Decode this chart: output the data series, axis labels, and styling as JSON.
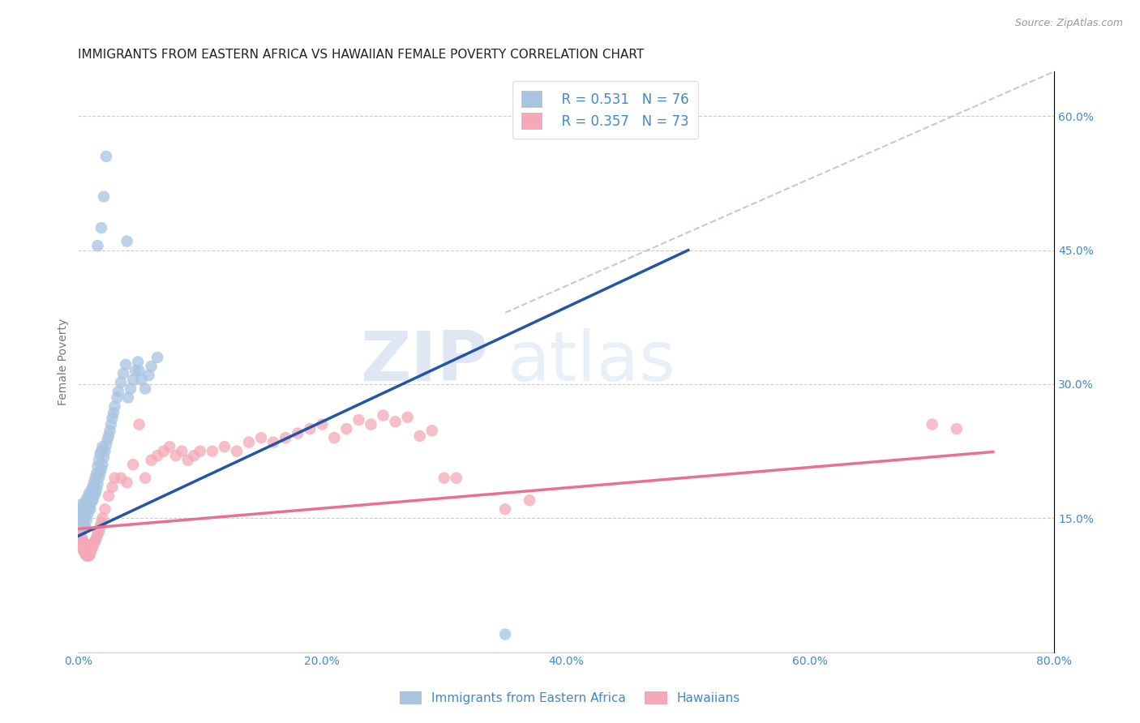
{
  "title": "IMMIGRANTS FROM EASTERN AFRICA VS HAWAIIAN FEMALE POVERTY CORRELATION CHART",
  "source_text": "Source: ZipAtlas.com",
  "ylabel": "Female Poverty",
  "xlim": [
    0.0,
    0.8
  ],
  "ylim": [
    0.0,
    0.65
  ],
  "xticks": [
    0.0,
    0.1,
    0.2,
    0.3,
    0.4,
    0.5,
    0.6,
    0.7,
    0.8
  ],
  "xticklabels": [
    "0.0%",
    "",
    "20.0%",
    "",
    "40.0%",
    "",
    "60.0%",
    "",
    "80.0%"
  ],
  "yticks_right": [
    0.15,
    0.3,
    0.45,
    0.6
  ],
  "ytick_labels_right": [
    "15.0%",
    "30.0%",
    "45.0%",
    "60.0%"
  ],
  "watermark_zip": "ZIP",
  "watermark_atlas": "atlas",
  "legend_r1": "R = 0.531",
  "legend_n1": "N = 76",
  "legend_r2": "R = 0.357",
  "legend_n2": "N = 73",
  "color_blue": "#A8C4E0",
  "color_pink": "#F4A8B8",
  "color_line_blue": "#2255AA",
  "color_line_pink": "#E87090",
  "color_dashed": "#BBCCDD",
  "blue_scatter_x": [
    0.001,
    0.001,
    0.002,
    0.002,
    0.003,
    0.003,
    0.003,
    0.004,
    0.004,
    0.005,
    0.005,
    0.005,
    0.006,
    0.006,
    0.006,
    0.007,
    0.007,
    0.007,
    0.008,
    0.008,
    0.009,
    0.009,
    0.01,
    0.01,
    0.011,
    0.011,
    0.012,
    0.012,
    0.013,
    0.013,
    0.014,
    0.014,
    0.015,
    0.015,
    0.016,
    0.016,
    0.017,
    0.017,
    0.018,
    0.018,
    0.019,
    0.019,
    0.02,
    0.02,
    0.021,
    0.022,
    0.023,
    0.024,
    0.025,
    0.026,
    0.027,
    0.028,
    0.029,
    0.03,
    0.032,
    0.033,
    0.035,
    0.037,
    0.039,
    0.041,
    0.043,
    0.045,
    0.047,
    0.049,
    0.05,
    0.052,
    0.055,
    0.058,
    0.06,
    0.065,
    0.016,
    0.019,
    0.021,
    0.023,
    0.04,
    0.35
  ],
  "blue_scatter_y": [
    0.15,
    0.16,
    0.155,
    0.165,
    0.148,
    0.152,
    0.162,
    0.145,
    0.158,
    0.142,
    0.155,
    0.165,
    0.14,
    0.152,
    0.168,
    0.148,
    0.16,
    0.172,
    0.155,
    0.168,
    0.162,
    0.178,
    0.16,
    0.175,
    0.168,
    0.182,
    0.17,
    0.185,
    0.175,
    0.19,
    0.178,
    0.195,
    0.182,
    0.2,
    0.188,
    0.208,
    0.195,
    0.215,
    0.2,
    0.222,
    0.205,
    0.225,
    0.21,
    0.23,
    0.218,
    0.225,
    0.232,
    0.238,
    0.242,
    0.248,
    0.255,
    0.262,
    0.268,
    0.275,
    0.285,
    0.292,
    0.302,
    0.312,
    0.322,
    0.285,
    0.295,
    0.305,
    0.315,
    0.325,
    0.315,
    0.305,
    0.295,
    0.31,
    0.32,
    0.33,
    0.455,
    0.475,
    0.51,
    0.555,
    0.46,
    0.02
  ],
  "pink_scatter_x": [
    0.001,
    0.001,
    0.002,
    0.002,
    0.003,
    0.003,
    0.004,
    0.004,
    0.005,
    0.005,
    0.006,
    0.006,
    0.007,
    0.007,
    0.008,
    0.008,
    0.009,
    0.009,
    0.01,
    0.01,
    0.011,
    0.012,
    0.013,
    0.014,
    0.015,
    0.016,
    0.017,
    0.018,
    0.019,
    0.02,
    0.022,
    0.025,
    0.028,
    0.03,
    0.035,
    0.04,
    0.045,
    0.05,
    0.055,
    0.06,
    0.065,
    0.07,
    0.075,
    0.08,
    0.085,
    0.09,
    0.095,
    0.1,
    0.11,
    0.12,
    0.13,
    0.14,
    0.15,
    0.16,
    0.17,
    0.18,
    0.19,
    0.2,
    0.21,
    0.22,
    0.23,
    0.24,
    0.25,
    0.26,
    0.27,
    0.28,
    0.29,
    0.3,
    0.31,
    0.35,
    0.37,
    0.7,
    0.72
  ],
  "pink_scatter_y": [
    0.128,
    0.138,
    0.122,
    0.132,
    0.118,
    0.128,
    0.115,
    0.125,
    0.112,
    0.122,
    0.11,
    0.12,
    0.108,
    0.118,
    0.108,
    0.118,
    0.108,
    0.118,
    0.11,
    0.12,
    0.115,
    0.118,
    0.122,
    0.125,
    0.128,
    0.132,
    0.135,
    0.14,
    0.145,
    0.15,
    0.16,
    0.175,
    0.185,
    0.195,
    0.195,
    0.19,
    0.21,
    0.255,
    0.195,
    0.215,
    0.22,
    0.225,
    0.23,
    0.22,
    0.225,
    0.215,
    0.22,
    0.225,
    0.225,
    0.23,
    0.225,
    0.235,
    0.24,
    0.235,
    0.24,
    0.245,
    0.25,
    0.255,
    0.24,
    0.25,
    0.26,
    0.255,
    0.265,
    0.258,
    0.263,
    0.242,
    0.248,
    0.195,
    0.195,
    0.16,
    0.17,
    0.255,
    0.25
  ],
  "blue_line_x": [
    0.0,
    0.5
  ],
  "blue_line_y_intercept": 0.13,
  "blue_line_slope": 0.64,
  "pink_line_x": [
    0.0,
    0.75
  ],
  "pink_line_y_intercept": 0.138,
  "pink_line_slope": 0.115,
  "dashed_line_x": [
    0.35,
    0.8
  ],
  "dashed_line_y_start": 0.38,
  "dashed_line_y_end": 0.65,
  "legend_label1": "Immigrants from Eastern Africa",
  "legend_label2": "Hawaiians",
  "title_fontsize": 11,
  "axis_color": "#4488CC",
  "text_color_blue": "#4488CC",
  "watermark_color_zip": "#C8D8EC",
  "watermark_color_atlas": "#C8D8EC"
}
